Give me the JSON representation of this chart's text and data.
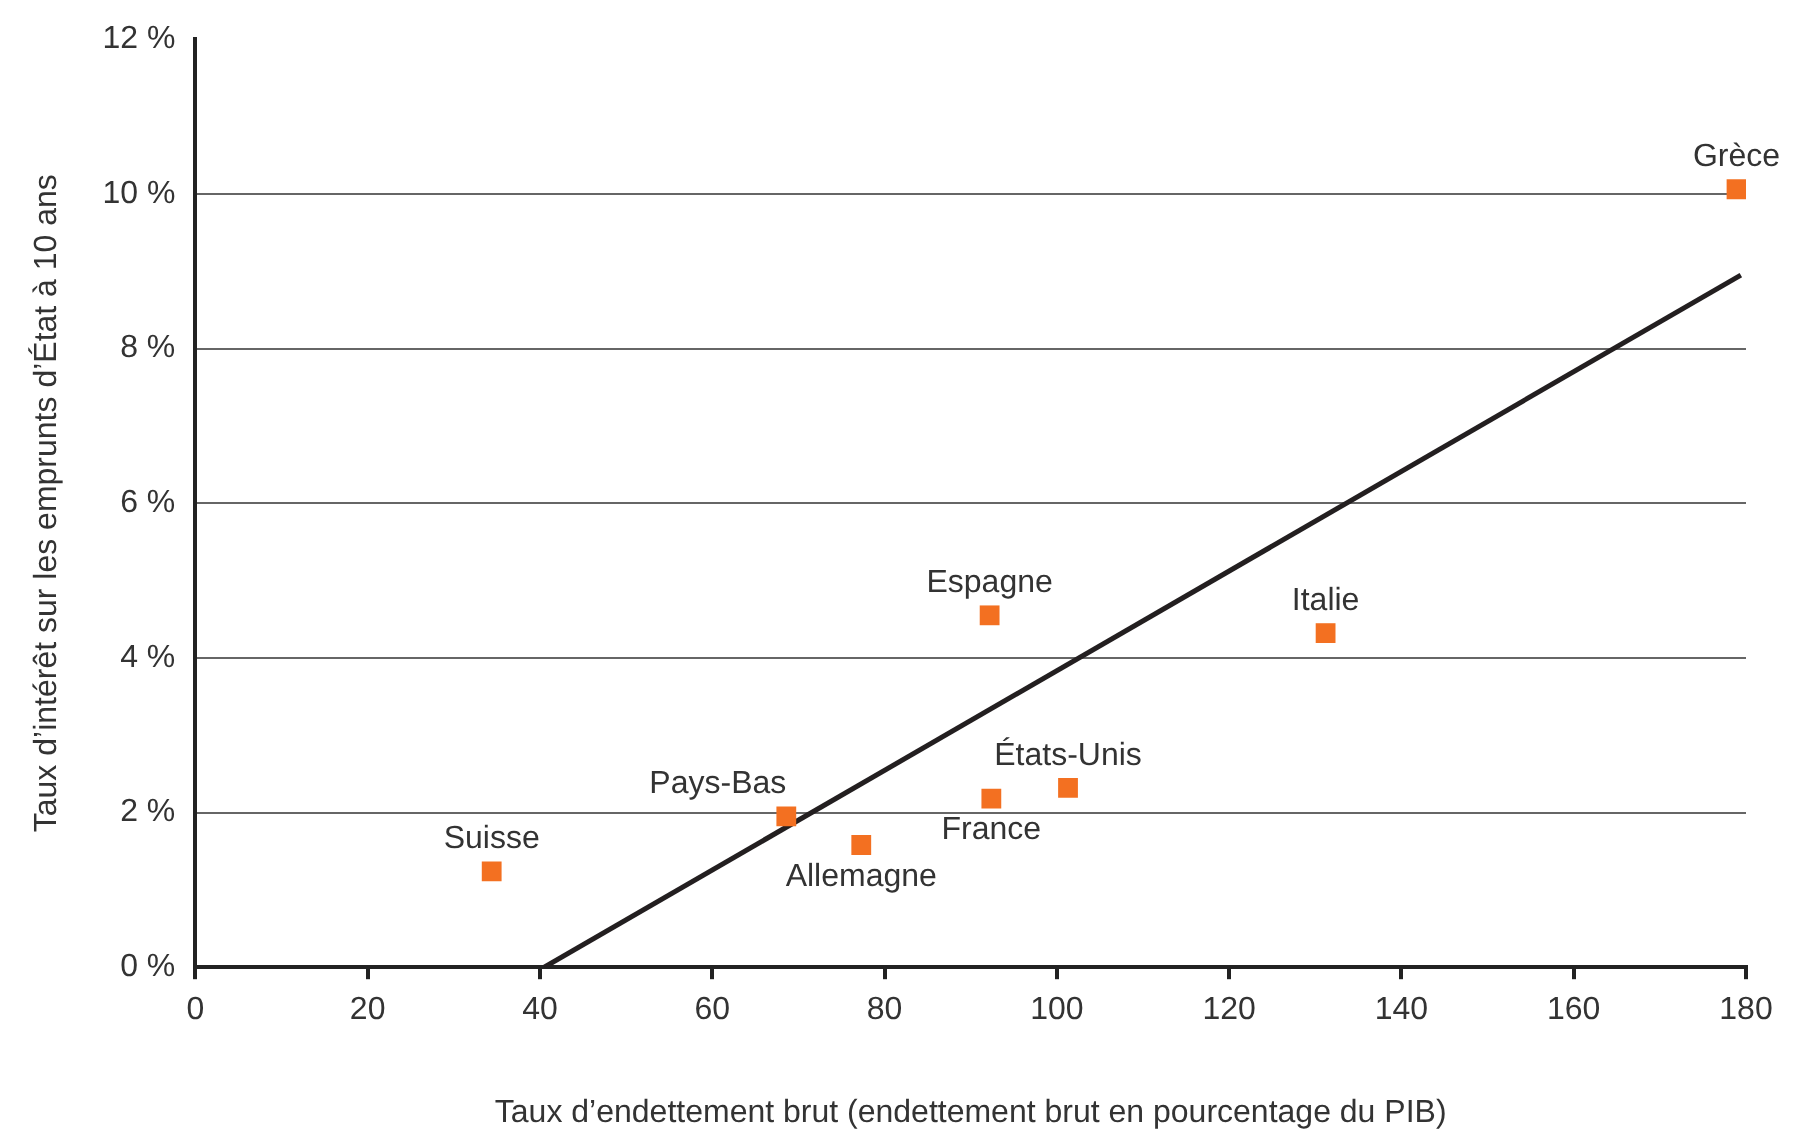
{
  "chart_data": {
    "type": "scatter",
    "xlabel": "Taux d’endettement brut (endettement brut en pourcentage du PIB)",
    "ylabel": "Taux d’intérêt sur les emprunts d’État à 10 ans",
    "xlim": [
      0,
      180
    ],
    "xticks": [
      0,
      20,
      40,
      60,
      80,
      100,
      120,
      140,
      160,
      180
    ],
    "ylim": [
      0,
      12
    ],
    "yticks": [
      {
        "value": 0,
        "label": "0 %"
      },
      {
        "value": 2,
        "label": "2 %"
      },
      {
        "value": 4,
        "label": "4 %"
      },
      {
        "value": 6,
        "label": "6 %"
      },
      {
        "value": 8,
        "label": "8 %"
      },
      {
        "value": 10,
        "label": "10 %"
      },
      {
        "value": 12,
        "label": "12 %"
      }
    ],
    "grid": "y",
    "series": [
      {
        "type": "scatter",
        "marker": "square",
        "color": "#f37021",
        "x": [
          34.4,
          68.6,
          92.2,
          131.2,
          101.3,
          92.4,
          77.3,
          178.9
        ],
        "values": [
          1.24,
          1.95,
          4.55,
          4.32,
          2.32,
          2.18,
          1.58,
          10.06
        ]
      },
      {
        "type": "line",
        "color": "#231f20",
        "x": [
          40.5,
          179.4
        ],
        "values": [
          0,
          8.95
        ]
      }
    ],
    "annotations": [
      {
        "text": "Suisse",
        "x": 34.4,
        "y": 1.24
      },
      {
        "text": "Pays-Bas",
        "x": 68.6,
        "y": 1.95
      },
      {
        "text": "Espagne",
        "x": 92.2,
        "y": 4.55
      },
      {
        "text": "Italie",
        "x": 131.2,
        "y": 4.32
      },
      {
        "text": "États-Unis",
        "x": 101.3,
        "y": 2.32
      },
      {
        "text": "France",
        "x": 92.4,
        "y": 2.18
      },
      {
        "text": "Allemagne",
        "x": 77.3,
        "y": 1.58
      },
      {
        "text": "Grèce",
        "x": 178.9,
        "y": 10.06
      }
    ]
  }
}
